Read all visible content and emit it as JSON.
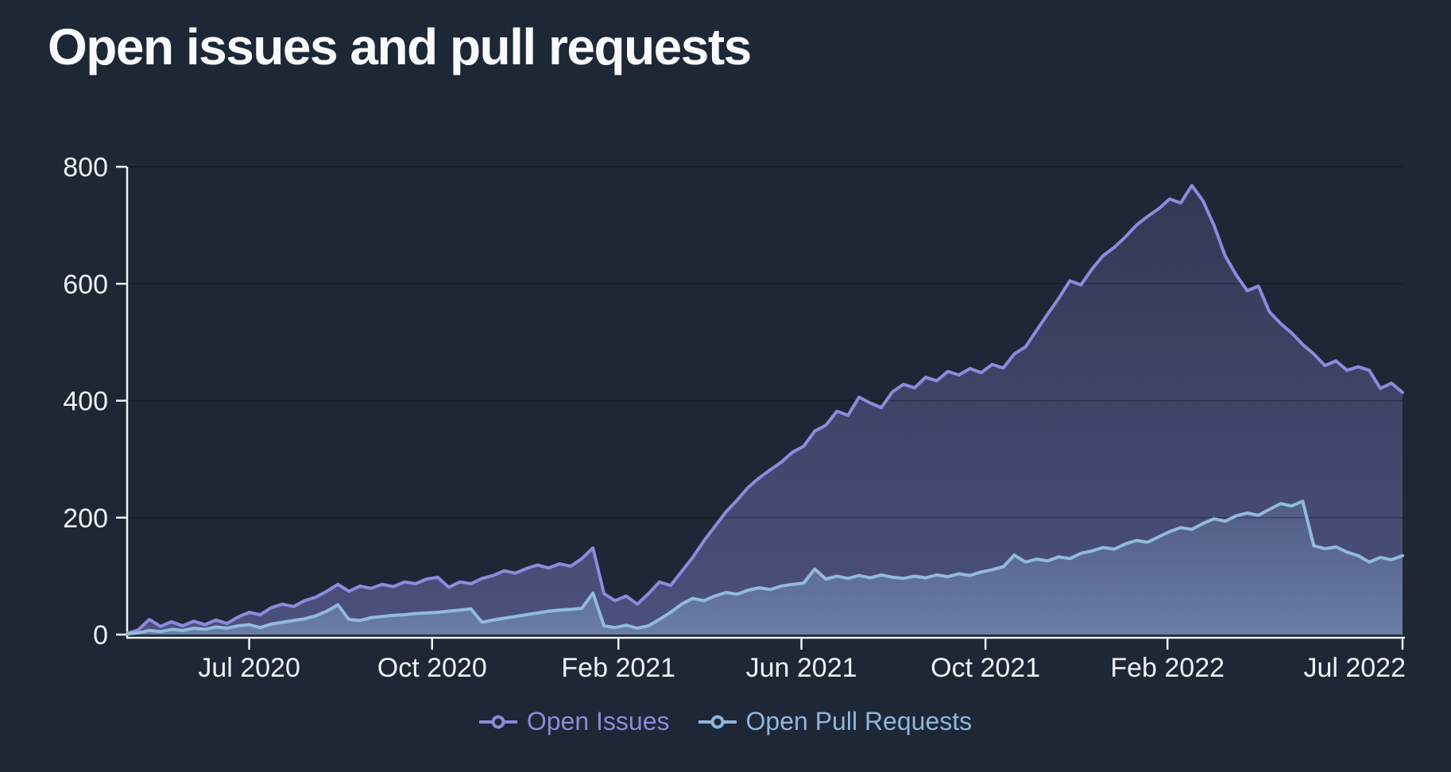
{
  "page": {
    "background": "#1e2735",
    "axis_color": "#eef2f7",
    "gridline_color": "rgba(0,0,0,0.28)"
  },
  "header": {
    "title": "Open issues and pull requests"
  },
  "legend": {
    "items": [
      {
        "label": "Open Issues",
        "color": "#8c8bd9",
        "marker": "line-open-circle"
      },
      {
        "label": "Open Pull Requests",
        "color": "#8fb6dc",
        "marker": "line-open-circle"
      }
    ]
  },
  "chart_data": {
    "type": "line",
    "title": "Open issues and pull requests",
    "xlabel": "",
    "ylabel": "",
    "ylim": [
      0,
      800
    ],
    "y_ticks": [
      0,
      200,
      400,
      600,
      800
    ],
    "grid": "horizontal",
    "legend_position": "bottom",
    "x_range_note": "weekly points, late Apr 2020 through mid Jul 2022",
    "x_ticks": [
      {
        "label": "Jul 2020",
        "pos": 0.0957
      },
      {
        "label": "Oct 2020",
        "pos": 0.2391
      },
      {
        "label": "Feb 2021",
        "pos": 0.3852
      },
      {
        "label": "Jun 2021",
        "pos": 0.5287
      },
      {
        "label": "Oct 2021",
        "pos": 0.673
      },
      {
        "label": "Feb 2022",
        "pos": 0.8157
      },
      {
        "label": "Jul 2022",
        "pos": 1.0
      }
    ],
    "series": [
      {
        "name": "Open Issues",
        "color": "#8c8bde",
        "fill_top": "rgba(140,139,222,0.18)",
        "fill_bottom": "rgba(140,139,222,0.42)",
        "values": [
          2,
          8,
          26,
          14,
          22,
          15,
          23,
          17,
          25,
          19,
          30,
          38,
          34,
          46,
          52,
          48,
          58,
          64,
          74,
          86,
          74,
          83,
          79,
          86,
          82,
          90,
          87,
          95,
          98,
          81,
          90,
          87,
          96,
          101,
          109,
          105,
          113,
          119,
          114,
          121,
          117,
          130,
          148,
          70,
          58,
          66,
          52,
          70,
          90,
          84,
          108,
          132,
          160,
          185,
          210,
          230,
          252,
          268,
          282,
          295,
          312,
          322,
          348,
          358,
          382,
          375,
          406,
          396,
          388,
          415,
          428,
          422,
          440,
          434,
          450,
          444,
          455,
          448,
          462,
          456,
          480,
          492,
          520,
          548,
          575,
          605,
          598,
          625,
          648,
          662,
          680,
          700,
          715,
          728,
          745,
          738,
          768,
          742,
          700,
          648,
          615,
          588,
          596,
          552,
          532,
          516,
          496,
          480,
          460,
          468,
          452,
          458,
          452,
          421,
          430,
          414
        ]
      },
      {
        "name": "Open Pull Requests",
        "color": "#92bade",
        "fill_top": "rgba(146,186,223,0.16)",
        "fill_bottom": "rgba(146,186,223,0.42)",
        "values": [
          1,
          3,
          7,
          5,
          9,
          7,
          11,
          9,
          13,
          11,
          15,
          17,
          12,
          18,
          21,
          24,
          27,
          32,
          40,
          51,
          26,
          24,
          29,
          31,
          33,
          34,
          36,
          37,
          38,
          40,
          42,
          44,
          21,
          25,
          28,
          31,
          34,
          37,
          40,
          42,
          43,
          45,
          71,
          15,
          12,
          16,
          11,
          15,
          26,
          38,
          52,
          62,
          58,
          66,
          72,
          69,
          76,
          80,
          77,
          83,
          86,
          88,
          112,
          95,
          100,
          96,
          101,
          97,
          102,
          98,
          96,
          100,
          97,
          102,
          99,
          104,
          101,
          107,
          111,
          116,
          136,
          124,
          129,
          126,
          133,
          130,
          139,
          143,
          149,
          146,
          155,
          161,
          158,
          167,
          176,
          183,
          180,
          190,
          198,
          194,
          203,
          208,
          204,
          214,
          224,
          220,
          228,
          152,
          147,
          150,
          141,
          135,
          124,
          132,
          128,
          135
        ]
      }
    ]
  }
}
